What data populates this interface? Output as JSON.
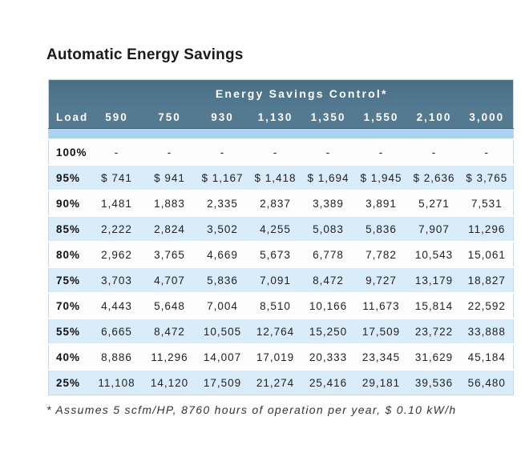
{
  "page": {
    "title": "Automatic Energy Savings"
  },
  "table": {
    "header": "Energy Savings Control*",
    "load_label": "Load",
    "columns": [
      "590",
      "750",
      "930",
      "1,130",
      "1,350",
      "1,550",
      "2,100",
      "3,000"
    ],
    "rows": [
      {
        "load": "100%",
        "values": [
          "-",
          "-",
          "-",
          "-",
          "-",
          "-",
          "-",
          "-"
        ]
      },
      {
        "load": "95%",
        "values": [
          "$ 741",
          "$ 941",
          "$ 1,167",
          "$ 1,418",
          "$ 1,694",
          "$ 1,945",
          "$ 2,636",
          "$ 3,765"
        ]
      },
      {
        "load": "90%",
        "values": [
          "1,481",
          "1,883",
          "2,335",
          "2,837",
          "3,389",
          "3,891",
          "5,271",
          "7,531"
        ]
      },
      {
        "load": "85%",
        "values": [
          "2,222",
          "2,824",
          "3,502",
          "4,255",
          "5,083",
          "5,836",
          "7,907",
          "11,296"
        ]
      },
      {
        "load": "80%",
        "values": [
          "2,962",
          "3,765",
          "4,669",
          "5,673",
          "6,778",
          "7,782",
          "10,543",
          "15,061"
        ]
      },
      {
        "load": "75%",
        "values": [
          "3,703",
          "4,707",
          "5,836",
          "7,091",
          "8,472",
          "9,727",
          "13,179",
          "18,827"
        ]
      },
      {
        "load": "70%",
        "values": [
          "4,443",
          "5,648",
          "7,004",
          "8,510",
          "10,166",
          "11,673",
          "15,814",
          "22,592"
        ]
      },
      {
        "load": "55%",
        "values": [
          "6,665",
          "8,472",
          "10,505",
          "12,764",
          "15,250",
          "17,509",
          "23,722",
          "33,888"
        ]
      },
      {
        "load": "40%",
        "values": [
          "8,886",
          "11,296",
          "14,007",
          "17,019",
          "20,333",
          "23,345",
          "31,629",
          "45,184"
        ]
      },
      {
        "load": "25%",
        "values": [
          "11,108",
          "14,120",
          "17,509",
          "21,274",
          "25,416",
          "29,181",
          "39,536",
          "56,480"
        ]
      }
    ]
  },
  "footnote": "* Assumes 5 scfm/HP, 8760 hours of operation per year, $ 0.10 kW/h",
  "colors": {
    "header_band": "#537a90",
    "divider_strip": "#a9d3ee",
    "alt_row": "#d9ecf9",
    "text": "#222222",
    "title_text": "#1a1a1a",
    "header_text": "#ffffff"
  }
}
